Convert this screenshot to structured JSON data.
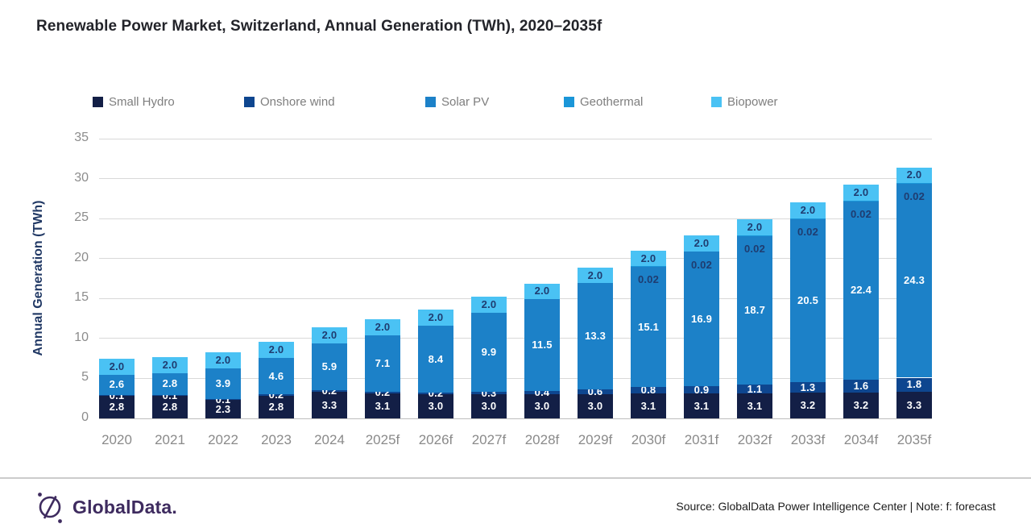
{
  "title": "Renewable Power Market, Switzerland, Annual Generation (TWh), 2020–2035f",
  "footer": {
    "logo_text": "GlobalData.",
    "source_text": "Source: GlobalData Power Intelligence Center | Note: f: forecast"
  },
  "colors": {
    "small_hydro": "#131f46",
    "onshore_wind": "#0e468f",
    "solar_pv": "#1c81c8",
    "geothermal": "#1b96d8",
    "biopower": "#4ac2f4",
    "value_label_dark": "#1f3c70",
    "value_label_light": "#ffffff",
    "logo_purple": "#3e2b5f"
  },
  "chart_data": {
    "type": "bar",
    "stacked": true,
    "title": "Renewable Power Market, Switzerland, Annual Generation (TWh), 2020–2035f",
    "xlabel": "",
    "ylabel": "Annual Generation (TWh)",
    "ylim": [
      0,
      35
    ],
    "yticks": [
      0,
      5,
      10,
      15,
      20,
      25,
      30,
      35
    ],
    "grid": true,
    "legend_position": "top",
    "categories": [
      "2020",
      "2021",
      "2022",
      "2023",
      "2024",
      "2025f",
      "2026f",
      "2027f",
      "2028f",
      "2029f",
      "2030f",
      "2031f",
      "2032f",
      "2033f",
      "2034f",
      "2035f"
    ],
    "series": [
      {
        "name": "Small Hydro",
        "color": "#131f46",
        "label_color": "#ffffff",
        "values": [
          2.8,
          2.8,
          2.3,
          2.8,
          3.3,
          3.1,
          3.0,
          3.0,
          3.0,
          3.0,
          3.1,
          3.1,
          3.1,
          3.2,
          3.2,
          3.3
        ],
        "labels": [
          "2.8",
          "2.8",
          "2.3",
          "2.8",
          "3.3",
          "3.1",
          "3.0",
          "3.0",
          "3.0",
          "3.0",
          "3.1",
          "3.1",
          "3.1",
          "3.2",
          "3.2",
          "3.3"
        ]
      },
      {
        "name": "Onshore wind",
        "color": "#0e468f",
        "label_color": "#ffffff",
        "values": [
          0.1,
          0.1,
          0.1,
          0.2,
          0.2,
          0.2,
          0.2,
          0.3,
          0.4,
          0.6,
          0.8,
          0.9,
          1.1,
          1.3,
          1.6,
          1.8
        ],
        "labels": [
          "0.1",
          "0.1",
          "0.1",
          "0.2",
          "0.2",
          "0.2",
          "0.2",
          "0.3",
          "0.4",
          "0.6",
          "0.8",
          "0.9",
          "1.1",
          "1.3",
          "1.6",
          "1.8"
        ]
      },
      {
        "name": "Solar PV",
        "color": "#1c81c8",
        "label_color": "#ffffff",
        "values": [
          2.6,
          2.8,
          3.9,
          4.6,
          5.9,
          7.1,
          8.4,
          9.9,
          11.5,
          13.3,
          15.1,
          16.9,
          18.7,
          20.5,
          22.4,
          24.3
        ],
        "labels": [
          "2.6",
          "2.8",
          "3.9",
          "4.6",
          "5.9",
          "7.1",
          "8.4",
          "9.9",
          "11.5",
          "13.3",
          "15.1",
          "16.9",
          "18.7",
          "20.5",
          "22.4",
          "24.3"
        ]
      },
      {
        "name": "Geothermal",
        "color": "#1b96d8",
        "label_color": "#1f3c70",
        "values": [
          0,
          0,
          0,
          0,
          0,
          0,
          0,
          0,
          0,
          0,
          0.02,
          0.02,
          0.02,
          0.02,
          0.02,
          0.02
        ],
        "labels": [
          "",
          "",
          "",
          "",
          "",
          "",
          "",
          "",
          "",
          "",
          "0.02",
          "0.02",
          "0.02",
          "0.02",
          "0.02",
          "0.02"
        ]
      },
      {
        "name": "Biopower",
        "color": "#4ac2f4",
        "label_color": "#1f3c70",
        "values": [
          2.0,
          2.0,
          2.0,
          2.0,
          2.0,
          2.0,
          2.0,
          2.0,
          2.0,
          2.0,
          2.0,
          2.0,
          2.0,
          2.0,
          2.0,
          2.0
        ],
        "labels": [
          "2.0",
          "2.0",
          "2.0",
          "2.0",
          "2.0",
          "2.0",
          "2.0",
          "2.0",
          "2.0",
          "2.0",
          "2.0",
          "2.0",
          "2.0",
          "2.0",
          "2.0",
          "2.0"
        ]
      }
    ]
  }
}
